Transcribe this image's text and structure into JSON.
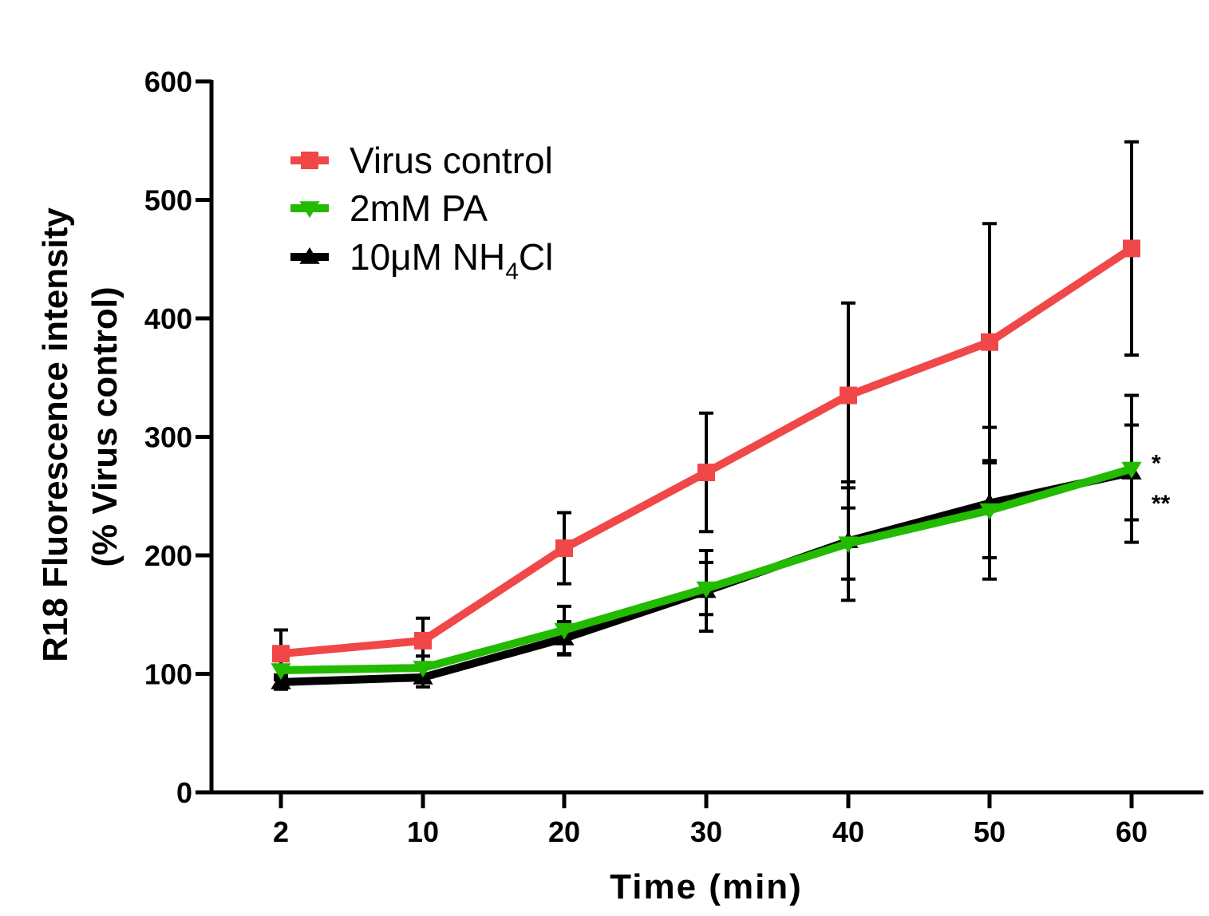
{
  "chart_data": {
    "type": "line",
    "xlabel": "Time (min)",
    "ylabel": "R18 Fluorescence intensity",
    "ylabel2": "(% Virus control)",
    "x_categories": [
      "2",
      "10",
      "20",
      "30",
      "40",
      "50",
      "60"
    ],
    "ylim": [
      0,
      600
    ],
    "yticks": [
      "0",
      "100",
      "200",
      "300",
      "400",
      "500",
      "600"
    ],
    "grid": false,
    "legend_position": "top-left",
    "series": [
      {
        "name": "Virus control",
        "name_main": "Virus control",
        "name_sub": "",
        "name_after": "",
        "color": "#f04848",
        "marker": "square",
        "values": [
          117,
          128,
          206,
          270,
          335,
          380,
          459
        ],
        "error": [
          20,
          19,
          30,
          50,
          78,
          100,
          90
        ]
      },
      {
        "name": "2mM PA",
        "name_main": "2mM PA",
        "name_sub": "",
        "name_after": "",
        "color": "#22bb00",
        "marker": "triangle-down",
        "values": [
          103,
          105,
          137,
          172,
          210,
          238,
          273
        ],
        "error": [
          8,
          10,
          20,
          22,
          30,
          40,
          62
        ]
      },
      {
        "name": "10μM NH4Cl",
        "name_main": "10μM NH",
        "name_sub": "4",
        "name_after": "Cl",
        "color": "#000000",
        "marker": "triangle-up",
        "values": [
          93,
          97,
          130,
          170,
          212,
          244,
          270
        ],
        "error": [
          6,
          8,
          14,
          34,
          50,
          64,
          40
        ]
      }
    ],
    "annotations": [
      {
        "text": "*",
        "x": "60",
        "y": 283
      },
      {
        "text": "**",
        "x": "60",
        "y": 249
      }
    ]
  }
}
